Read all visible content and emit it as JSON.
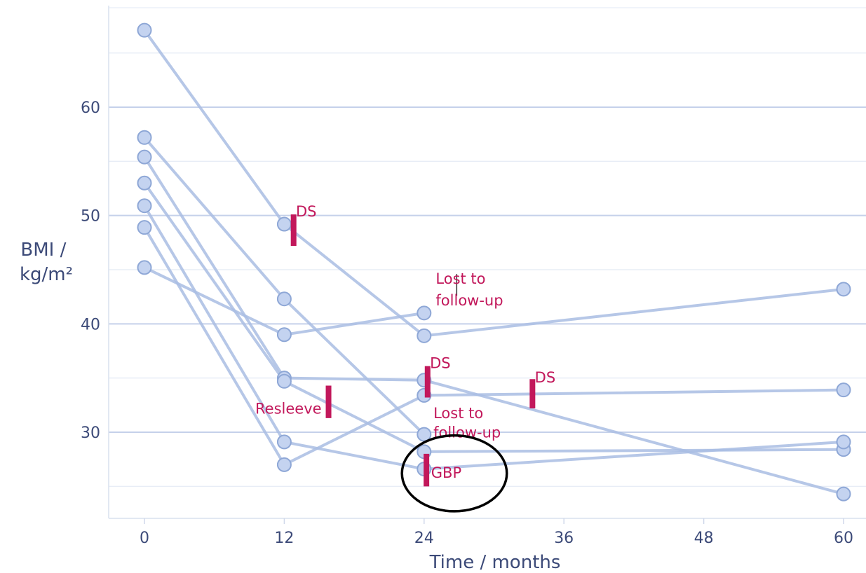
{
  "chart_data": {
    "type": "line",
    "xlabel": "Time / months",
    "ylabel_line1": "BMI /",
    "ylabel_line2": "kg/m²",
    "xlim": [
      -3,
      61
    ],
    "ylim": [
      22,
      71
    ],
    "xticks": [
      0,
      12,
      24,
      36,
      48,
      60
    ],
    "yticks": [
      30,
      40,
      50,
      60
    ],
    "minor_gridlines_y": [
      25,
      35,
      45,
      55,
      65
    ],
    "grid": true,
    "colors": {
      "series": "#a9bde3",
      "marker_fill": "#c4d3f0",
      "marker_edge": "#8ea7d6",
      "annotation": "#c2185b",
      "grid_major": "#c5d1ea",
      "grid_minor": "#e8edf6",
      "axis_text": "#3c4a78",
      "highlight": "#000000"
    },
    "series": [
      {
        "points": [
          [
            0,
            67.1
          ],
          [
            12,
            49.2
          ],
          [
            24,
            38.9
          ],
          [
            60,
            43.2
          ]
        ]
      },
      {
        "points": [
          [
            0,
            57.2
          ],
          [
            12,
            42.3
          ],
          [
            24,
            29.8
          ]
        ]
      },
      {
        "points": [
          [
            0,
            55.4
          ],
          [
            12,
            35.0
          ],
          [
            24,
            34.8
          ],
          [
            60,
            24.3
          ]
        ]
      },
      {
        "points": [
          [
            0,
            53.0
          ],
          [
            12,
            34.7
          ],
          [
            24,
            28.2
          ],
          [
            60,
            28.4
          ]
        ]
      },
      {
        "points": [
          [
            0,
            50.9
          ],
          [
            12,
            29.1
          ],
          [
            24,
            26.6
          ],
          [
            60,
            29.1
          ]
        ]
      },
      {
        "points": [
          [
            0,
            48.9
          ],
          [
            12,
            27.0
          ],
          [
            24,
            33.4
          ],
          [
            60,
            33.9
          ]
        ]
      },
      {
        "points": [
          [
            0,
            45.2
          ],
          [
            12,
            39.0
          ],
          [
            24,
            41.0
          ]
        ]
      }
    ],
    "annotations": [
      {
        "text": "DS",
        "x": 12.8,
        "y_from": 47.2,
        "y_to": 50.1,
        "label_x": 13.0,
        "label_y": 49.9,
        "anchor": "start"
      },
      {
        "text": "DS",
        "x": 24.3,
        "y_from": 33.2,
        "y_to": 36.1,
        "label_x": 24.5,
        "label_y": 35.9,
        "anchor": "start"
      },
      {
        "text": "DS",
        "x": 33.3,
        "y_from": 32.2,
        "y_to": 34.9,
        "label_x": 33.5,
        "label_y": 34.6,
        "anchor": "start"
      },
      {
        "text": "Resleeve",
        "x": 15.8,
        "y_from": 31.3,
        "y_to": 34.3,
        "label_x": 15.2,
        "label_y": 31.7,
        "anchor": "end"
      },
      {
        "text": "GBP",
        "x": 24.2,
        "y_from": 25.0,
        "y_to": 28.0,
        "label_x": 24.6,
        "label_y": 25.8,
        "anchor": "start"
      }
    ],
    "notes": [
      {
        "line1": "Lost to",
        "line2": "follow-up",
        "x": 25.0,
        "y1": 43.7,
        "y2": 41.7,
        "tick_x": 26.8,
        "tick_y_from": 42.6,
        "tick_y_to": 44.6
      },
      {
        "line1": "Lost to",
        "line2": "follow-up",
        "x": 24.8,
        "y1": 31.3,
        "y2": 29.5
      }
    ],
    "highlight_ellipse": {
      "cx": 26.6,
      "cy": 26.2,
      "rx": 4.5,
      "ry": 3.5
    }
  }
}
